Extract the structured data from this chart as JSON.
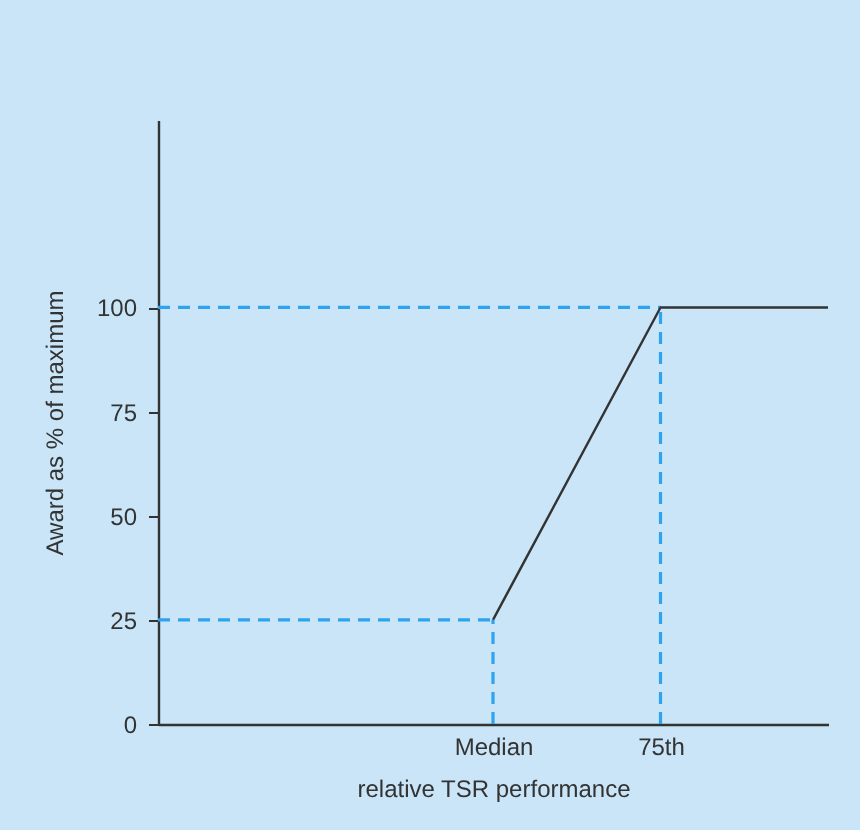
{
  "chart_data": {
    "type": "line",
    "xlabel": "relative TSR performance",
    "ylabel": "Award as % of maximum",
    "categories": [
      null,
      null,
      "Median",
      "75th",
      null
    ],
    "ylim": [
      0,
      145
    ],
    "yticks": [
      0,
      25,
      50,
      75,
      100
    ],
    "marker": "none",
    "series": [
      {
        "values": [
          25,
          25,
          25,
          null,
          null
        ],
        "color": "#2fa3ee",
        "line_style": "dashed"
      },
      {
        "values": [
          100,
          100,
          100,
          100,
          null
        ],
        "color": "#2fa3ee",
        "line_style": "dashed"
      },
      {
        "values": [
          null,
          null,
          25,
          100,
          100
        ],
        "color": "#333333",
        "line_style": "solid"
      }
    ],
    "ref_lines": [
      {
        "axis": "x",
        "value": "Median",
        "color": "#2fa3ee",
        "line_style": "dashed"
      },
      {
        "axis": "x",
        "value": "75th",
        "color": "#2fa3ee",
        "line_style": "dashed"
      }
    ]
  }
}
